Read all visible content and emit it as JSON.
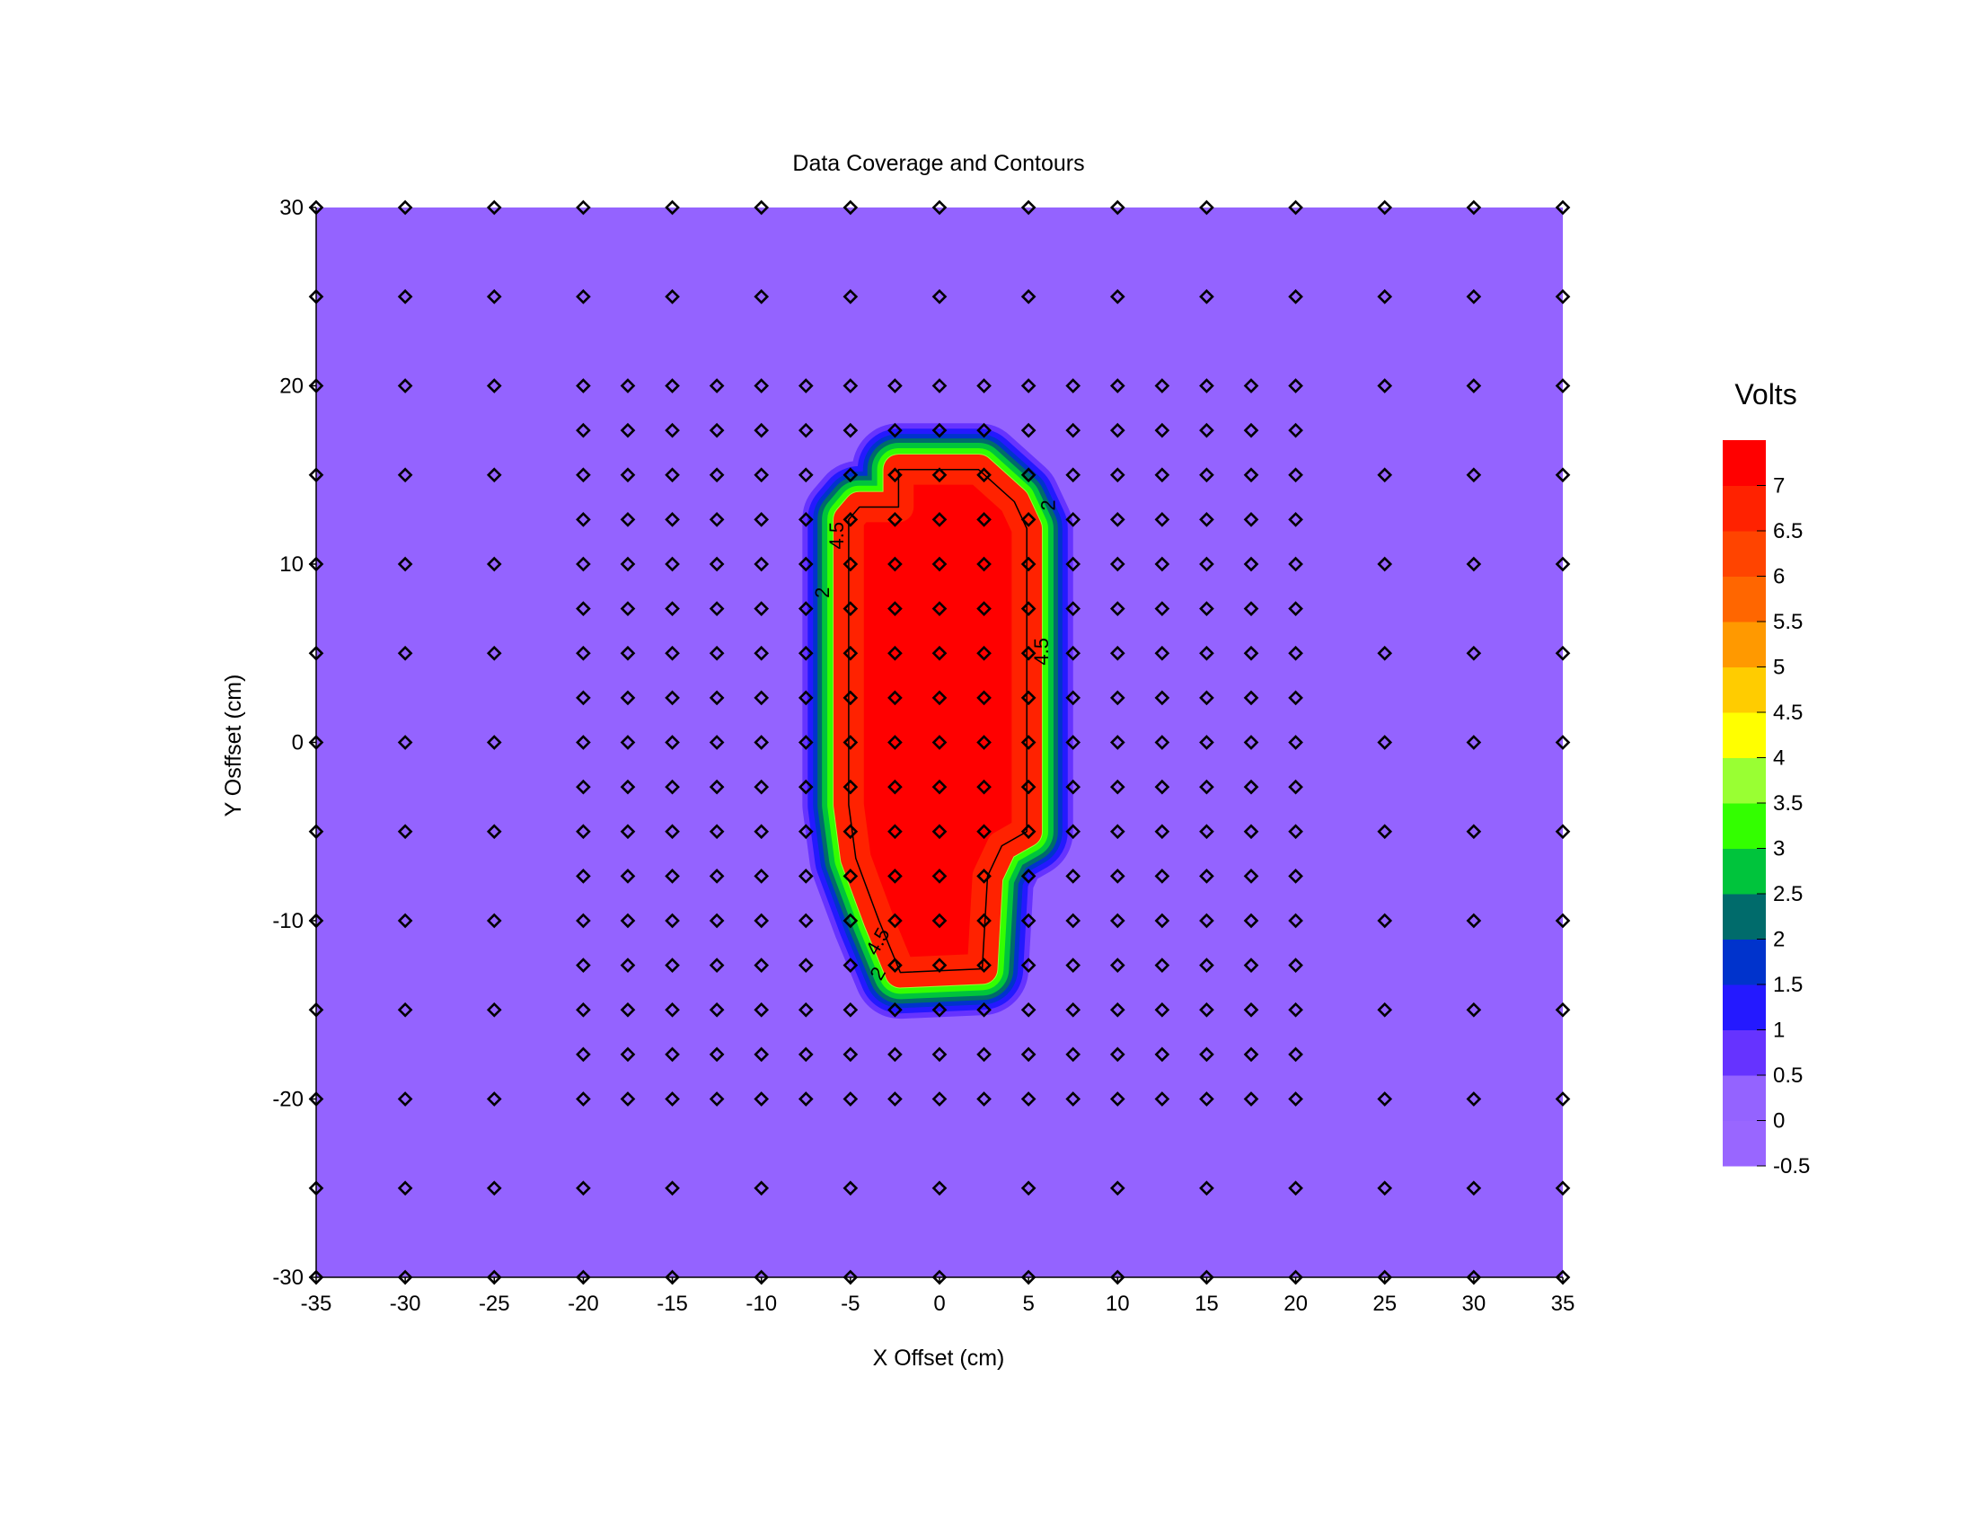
{
  "chart_data": {
    "type": "heatmap",
    "title": "Data Coverage and Contours",
    "xlabel": "X Offset (cm)",
    "ylabel": "Y Osffset (cm)",
    "xlim": [
      -35,
      35
    ],
    "ylim": [
      -30,
      30
    ],
    "x_ticks": [
      -35,
      -30,
      -25,
      -20,
      -15,
      -10,
      -5,
      0,
      5,
      10,
      15,
      20,
      25,
      30,
      35
    ],
    "y_ticks": [
      30,
      20,
      10,
      0,
      -10,
      -20,
      -30
    ],
    "legend": {
      "title": "Volts",
      "placement": "right",
      "levels": [
        -0.5,
        0,
        0.5,
        1,
        1.5,
        2,
        2.5,
        3,
        3.5,
        4,
        4.5,
        5,
        5.5,
        6,
        6.5,
        7
      ],
      "labels": [
        "-0.5",
        "0",
        "0.5",
        "1",
        "1.5",
        "2",
        "2.5",
        "3",
        "3.5",
        "4",
        "4.5",
        "5",
        "5.5",
        "6",
        "6.5",
        "7"
      ],
      "colors": [
        "#9966ff",
        "#9463ff",
        "#6633ff",
        "#2419ff",
        "#0033cc",
        "#006b6b",
        "#00c43c",
        "#33ff00",
        "#99ff33",
        "#ffff00",
        "#ffcc00",
        "#ff9900",
        "#ff6600",
        "#ff4400",
        "#ff2200",
        "#ff0000"
      ]
    },
    "background_value": 0,
    "high_region": {
      "value": 7,
      "boundary_4_5_cm": [
        [
          -2.3,
          15.3
        ],
        [
          2.2,
          15.3
        ],
        [
          4.2,
          13.5
        ],
        [
          4.9,
          12
        ],
        [
          4.9,
          -5
        ],
        [
          3.5,
          -5.8
        ],
        [
          2.7,
          -7.5
        ],
        [
          2.4,
          -12.7
        ],
        [
          -2.2,
          -12.9
        ],
        [
          -3.4,
          -10
        ],
        [
          -4.7,
          -6.5
        ],
        [
          -5.1,
          -3.5
        ],
        [
          -5.1,
          12.5
        ],
        [
          -4.5,
          13.2
        ],
        [
          -2.3,
          13.2
        ]
      ]
    },
    "contour_labels": [
      {
        "text": "4.5",
        "x": -5.7,
        "y": 11.6,
        "angle": -90
      },
      {
        "text": "2",
        "x": -6.5,
        "y": 8.4,
        "angle": -90
      },
      {
        "text": "4.5",
        "x": 5.8,
        "y": 5.1,
        "angle": -90
      },
      {
        "text": "2",
        "x": 6.2,
        "y": 13.3,
        "angle": -90
      },
      {
        "text": "4.5",
        "x": -3.4,
        "y": -11.2,
        "angle": -60
      },
      {
        "text": "2",
        "x": -3.4,
        "y": -13.0,
        "angle": -60
      }
    ],
    "sample_points": {
      "coarse_x": [
        -35,
        -30,
        -25,
        -20,
        -15,
        -10,
        -5,
        0,
        5,
        10,
        15,
        20,
        25,
        30,
        35
      ],
      "coarse_y": [
        30,
        25,
        20,
        15,
        10,
        5,
        0,
        -5,
        -10,
        -15,
        -20,
        -25,
        -30
      ],
      "coarse_y_edge_only": [
        30,
        25,
        -25,
        -30
      ],
      "fine_x_range": [
        -20,
        20
      ],
      "fine_y_range": [
        -20,
        20
      ],
      "fine_step": 2.5
    }
  }
}
